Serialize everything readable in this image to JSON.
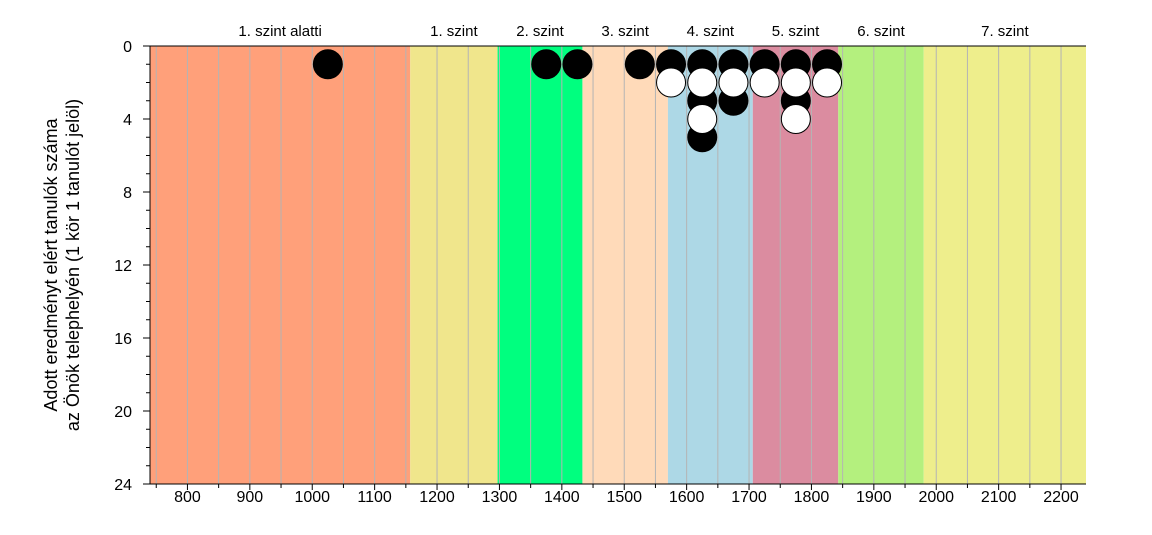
{
  "chart_data": {
    "type": "scatter",
    "title": "",
    "ylabel": [
      "Adott eredményt elért tanulók száma",
      "az Önök telephelyén (1 kör 1 tanulót jelöl)"
    ],
    "xlabel": "",
    "xlim": [
      740,
      2240
    ],
    "ylim": [
      0,
      24
    ],
    "y_inverted": true,
    "x_ticks": [
      800,
      900,
      1000,
      1100,
      1200,
      1300,
      1400,
      1500,
      1600,
      1700,
      1800,
      1900,
      2000,
      2100,
      2200
    ],
    "y_ticks": [
      0,
      4,
      8,
      12,
      16,
      20,
      24
    ],
    "grid": "vertical",
    "levels": [
      {
        "label": "1. szint alatti",
        "from": 740,
        "to": 1157,
        "color": "#FFA07A"
      },
      {
        "label": "1. szint",
        "from": 1157,
        "to": 1297,
        "color": "#F0E68C"
      },
      {
        "label": "2. szint",
        "from": 1297,
        "to": 1433,
        "color": "#00FF7F"
      },
      {
        "label": "3. szint",
        "from": 1433,
        "to": 1570,
        "color": "#FFDAB9"
      },
      {
        "label": "4. szint",
        "from": 1570,
        "to": 1706,
        "color": "#ADD8E6"
      },
      {
        "label": "5. szint",
        "from": 1706,
        "to": 1843,
        "color": "#DB8CA0"
      },
      {
        "label": "6. szint",
        "from": 1843,
        "to": 1980,
        "color": "#B4F07E"
      },
      {
        "label": "7. szint",
        "from": 1980,
        "to": 2240,
        "color": "#EEEE8C"
      }
    ],
    "series": [
      {
        "marker": "filled",
        "color": "#000000",
        "points": [
          {
            "x": 1025,
            "y": 1
          },
          {
            "x": 1375,
            "y": 1
          },
          {
            "x": 1425,
            "y": 1
          },
          {
            "x": 1525,
            "y": 1
          },
          {
            "x": 1575,
            "y": 1
          },
          {
            "x": 1625,
            "y": 1
          },
          {
            "x": 1675,
            "y": 1
          },
          {
            "x": 1725,
            "y": 1
          },
          {
            "x": 1775,
            "y": 1
          },
          {
            "x": 1825,
            "y": 1
          },
          {
            "x": 1625,
            "y": 3
          },
          {
            "x": 1675,
            "y": 3
          },
          {
            "x": 1775,
            "y": 3
          },
          {
            "x": 1625,
            "y": 5
          }
        ]
      },
      {
        "marker": "open",
        "color": "#ffffff",
        "points": [
          {
            "x": 1575,
            "y": 2
          },
          {
            "x": 1625,
            "y": 2
          },
          {
            "x": 1675,
            "y": 2
          },
          {
            "x": 1725,
            "y": 2
          },
          {
            "x": 1775,
            "y": 2
          },
          {
            "x": 1825,
            "y": 2
          },
          {
            "x": 1625,
            "y": 4
          },
          {
            "x": 1775,
            "y": 4
          }
        ]
      }
    ]
  }
}
